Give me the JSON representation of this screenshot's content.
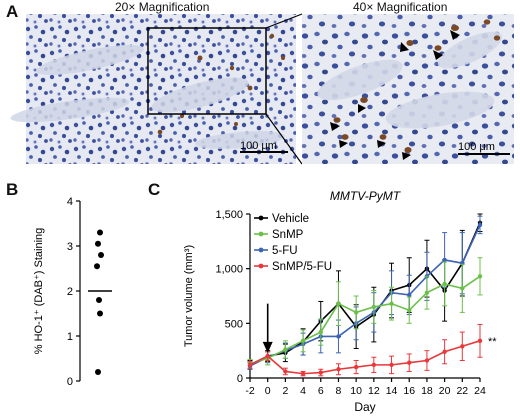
{
  "panels": {
    "A": {
      "letter": "A",
      "left_title": "20× Magnification",
      "right_title": "40× Magnification",
      "left_scale_bar": "100 μm",
      "right_scale_bar": "100 μm"
    },
    "B": {
      "letter": "B"
    },
    "C": {
      "letter": "C"
    }
  },
  "colors": {
    "tissue_bg": "#dfe3ef",
    "nuclei": "#3b4f9c",
    "dab": "#7a4a26",
    "vehicle": "#000000",
    "snmp": "#6cc04a",
    "fu": "#3c64b4",
    "combo": "#e8383b"
  },
  "chart_data": [
    {
      "type": "scatter",
      "panel": "B",
      "ylabel": "% HO-1⁺ (DAB⁺) Staining",
      "ylim": [
        0,
        4
      ],
      "yticks": [
        "0",
        "1",
        "2",
        "3",
        "4"
      ],
      "points": [
        3.3,
        3.05,
        2.8,
        2.55,
        1.8,
        1.5,
        0.2
      ],
      "mean": 2.0
    },
    {
      "type": "line",
      "panel": "C",
      "title": "MMTV-PyMT",
      "xlabel": "Day",
      "ylabel": "Tumor volume (mm³)",
      "xlim": [
        -2,
        24
      ],
      "ylim": [
        0,
        1500
      ],
      "xticks": [
        "-2",
        "0",
        "2",
        "4",
        "6",
        "8",
        "10",
        "12",
        "14",
        "16",
        "18",
        "20",
        "22",
        "24"
      ],
      "yticks": [
        "0",
        "500",
        "1,000",
        "1,500"
      ],
      "annotation": "**",
      "series": [
        {
          "name": "Vehicle",
          "colorKey": "vehicle",
          "x": [
            -2,
            0,
            2,
            4,
            6,
            8,
            10,
            12,
            14,
            16,
            18,
            20,
            22,
            24
          ],
          "y": [
            120,
            200,
            230,
            330,
            520,
            680,
            470,
            580,
            800,
            850,
            1000,
            800,
            1050,
            1420
          ],
          "err": [
            40,
            50,
            80,
            120,
            180,
            300,
            200,
            250,
            250,
            250,
            260,
            280,
            300,
            80
          ]
        },
        {
          "name": "SnMP",
          "colorKey": "snmp",
          "x": [
            -2,
            0,
            2,
            4,
            6,
            8,
            10,
            12,
            14,
            16,
            18,
            20,
            22,
            24
          ],
          "y": [
            130,
            180,
            260,
            340,
            420,
            680,
            600,
            650,
            680,
            620,
            780,
            860,
            820,
            930
          ],
          "err": [
            40,
            60,
            80,
            100,
            120,
            200,
            150,
            150,
            150,
            120,
            150,
            200,
            220,
            170
          ]
        },
        {
          "name": "5-FU",
          "colorKey": "fu",
          "x": [
            -2,
            0,
            2,
            4,
            6,
            8,
            10,
            12,
            14,
            16,
            18,
            20,
            22,
            24
          ],
          "y": [
            110,
            190,
            250,
            310,
            380,
            380,
            500,
            600,
            780,
            760,
            930,
            1080,
            1050,
            1400
          ],
          "err": [
            30,
            50,
            70,
            100,
            150,
            150,
            150,
            180,
            200,
            180,
            220,
            250,
            280,
            80
          ]
        },
        {
          "name": "SnMP/5-FU",
          "colorKey": "combo",
          "x": [
            -2,
            0,
            2,
            4,
            6,
            8,
            10,
            12,
            14,
            16,
            18,
            20,
            22,
            24
          ],
          "y": [
            120,
            200,
            60,
            40,
            50,
            80,
            100,
            120,
            120,
            140,
            160,
            240,
            290,
            340
          ],
          "err": [
            30,
            40,
            30,
            20,
            30,
            50,
            60,
            70,
            80,
            80,
            90,
            110,
            130,
            150
          ]
        }
      ]
    }
  ]
}
